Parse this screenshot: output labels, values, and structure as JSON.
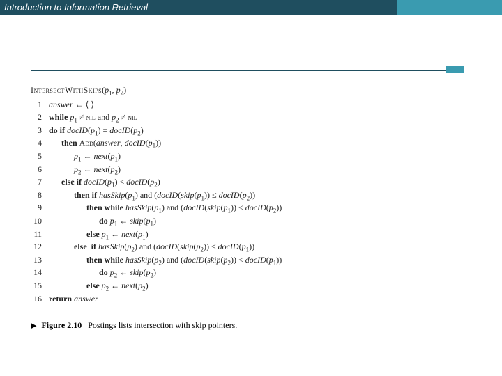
{
  "header": {
    "title": "Introduction to Information Retrieval",
    "left_bg": "#1f4e5f",
    "right_bg": "#3a9bb0",
    "text_color": "#ffffff"
  },
  "rule": {
    "color": "#1f4e5f",
    "accent": "#3a9bb0"
  },
  "algorithm": {
    "name": "IntersectWithSkips",
    "params_html": "(<span class='it'>p</span><sub>1</sub>, <span class='it'>p</span><sub>2</sub>)",
    "lines": [
      {
        "n": "1",
        "html": "<span class='it'>answer</span> ← ⟨ ⟩"
      },
      {
        "n": "2",
        "html": "<span class='kw'>while</span> <span class='it'>p</span><sub>1</sub> ≠ <span class='sc'>nil</span> and <span class='it'>p</span><sub>2</sub> ≠ <span class='sc'>nil</span>"
      },
      {
        "n": "3",
        "html": "<span class='kw'>do if</span> <span class='it'>docID</span>(<span class='it'>p</span><sub>1</sub>) = <span class='it'>docID</span>(<span class='it'>p</span><sub>2</sub>)"
      },
      {
        "n": "4",
        "html": "      <span class='kw'>then</span> <span class='sc'>Add</span>(<span class='it'>answer</span>, <span class='it'>docID</span>(<span class='it'>p</span><sub>1</sub>))"
      },
      {
        "n": "5",
        "html": "            <span class='it'>p</span><sub>1</sub> ← <span class='it'>next</span>(<span class='it'>p</span><sub>1</sub>)"
      },
      {
        "n": "6",
        "html": "            <span class='it'>p</span><sub>2</sub> ← <span class='it'>next</span>(<span class='it'>p</span><sub>2</sub>)"
      },
      {
        "n": "7",
        "html": "      <span class='kw'>else if</span> <span class='it'>docID</span>(<span class='it'>p</span><sub>1</sub>) &lt; <span class='it'>docID</span>(<span class='it'>p</span><sub>2</sub>)"
      },
      {
        "n": "8",
        "html": "            <span class='kw'>then if</span> <span class='it'>hasSkip</span>(<span class='it'>p</span><sub>1</sub>) and (<span class='it'>docID</span>(<span class='it'>skip</span>(<span class='it'>p</span><sub>1</sub>)) ≤ <span class='it'>docID</span>(<span class='it'>p</span><sub>2</sub>))"
      },
      {
        "n": "9",
        "html": "                  <span class='kw'>then while</span> <span class='it'>hasSkip</span>(<span class='it'>p</span><sub>1</sub>) and (<span class='it'>docID</span>(<span class='it'>skip</span>(<span class='it'>p</span><sub>1</sub>)) &lt; <span class='it'>docID</span>(<span class='it'>p</span><sub>2</sub>))"
      },
      {
        "n": "10",
        "html": "                        <span class='kw'>do</span> <span class='it'>p</span><sub>1</sub> ← <span class='it'>skip</span>(<span class='it'>p</span><sub>1</sub>)"
      },
      {
        "n": "11",
        "html": "                  <span class='kw'>else</span> <span class='it'>p</span><sub>1</sub> ← <span class='it'>next</span>(<span class='it'>p</span><sub>1</sub>)"
      },
      {
        "n": "12",
        "html": "            <span class='kw'>else  if</span> <span class='it'>hasSkip</span>(<span class='it'>p</span><sub>2</sub>) and (<span class='it'>docID</span>(<span class='it'>skip</span>(<span class='it'>p</span><sub>2</sub>)) ≤ <span class='it'>docID</span>(<span class='it'>p</span><sub>1</sub>))"
      },
      {
        "n": "13",
        "html": "                  <span class='kw'>then while</span> <span class='it'>hasSkip</span>(<span class='it'>p</span><sub>2</sub>) and (<span class='it'>docID</span>(<span class='it'>skip</span>(<span class='it'>p</span><sub>2</sub>)) &lt; <span class='it'>docID</span>(<span class='it'>p</span><sub>1</sub>))"
      },
      {
        "n": "14",
        "html": "                        <span class='kw'>do</span> <span class='it'>p</span><sub>2</sub> ← <span class='it'>skip</span>(<span class='it'>p</span><sub>2</sub>)"
      },
      {
        "n": "15",
        "html": "                  <span class='kw'>else</span> <span class='it'>p</span><sub>2</sub> ← <span class='it'>next</span>(<span class='it'>p</span><sub>2</sub>)"
      },
      {
        "n": "16",
        "html": "<span class='kw'>return</span> <span class='it'>answer</span>"
      }
    ]
  },
  "caption": {
    "marker": "▶",
    "label": "Figure 2.10",
    "text": "Postings lists intersection with skip pointers."
  }
}
